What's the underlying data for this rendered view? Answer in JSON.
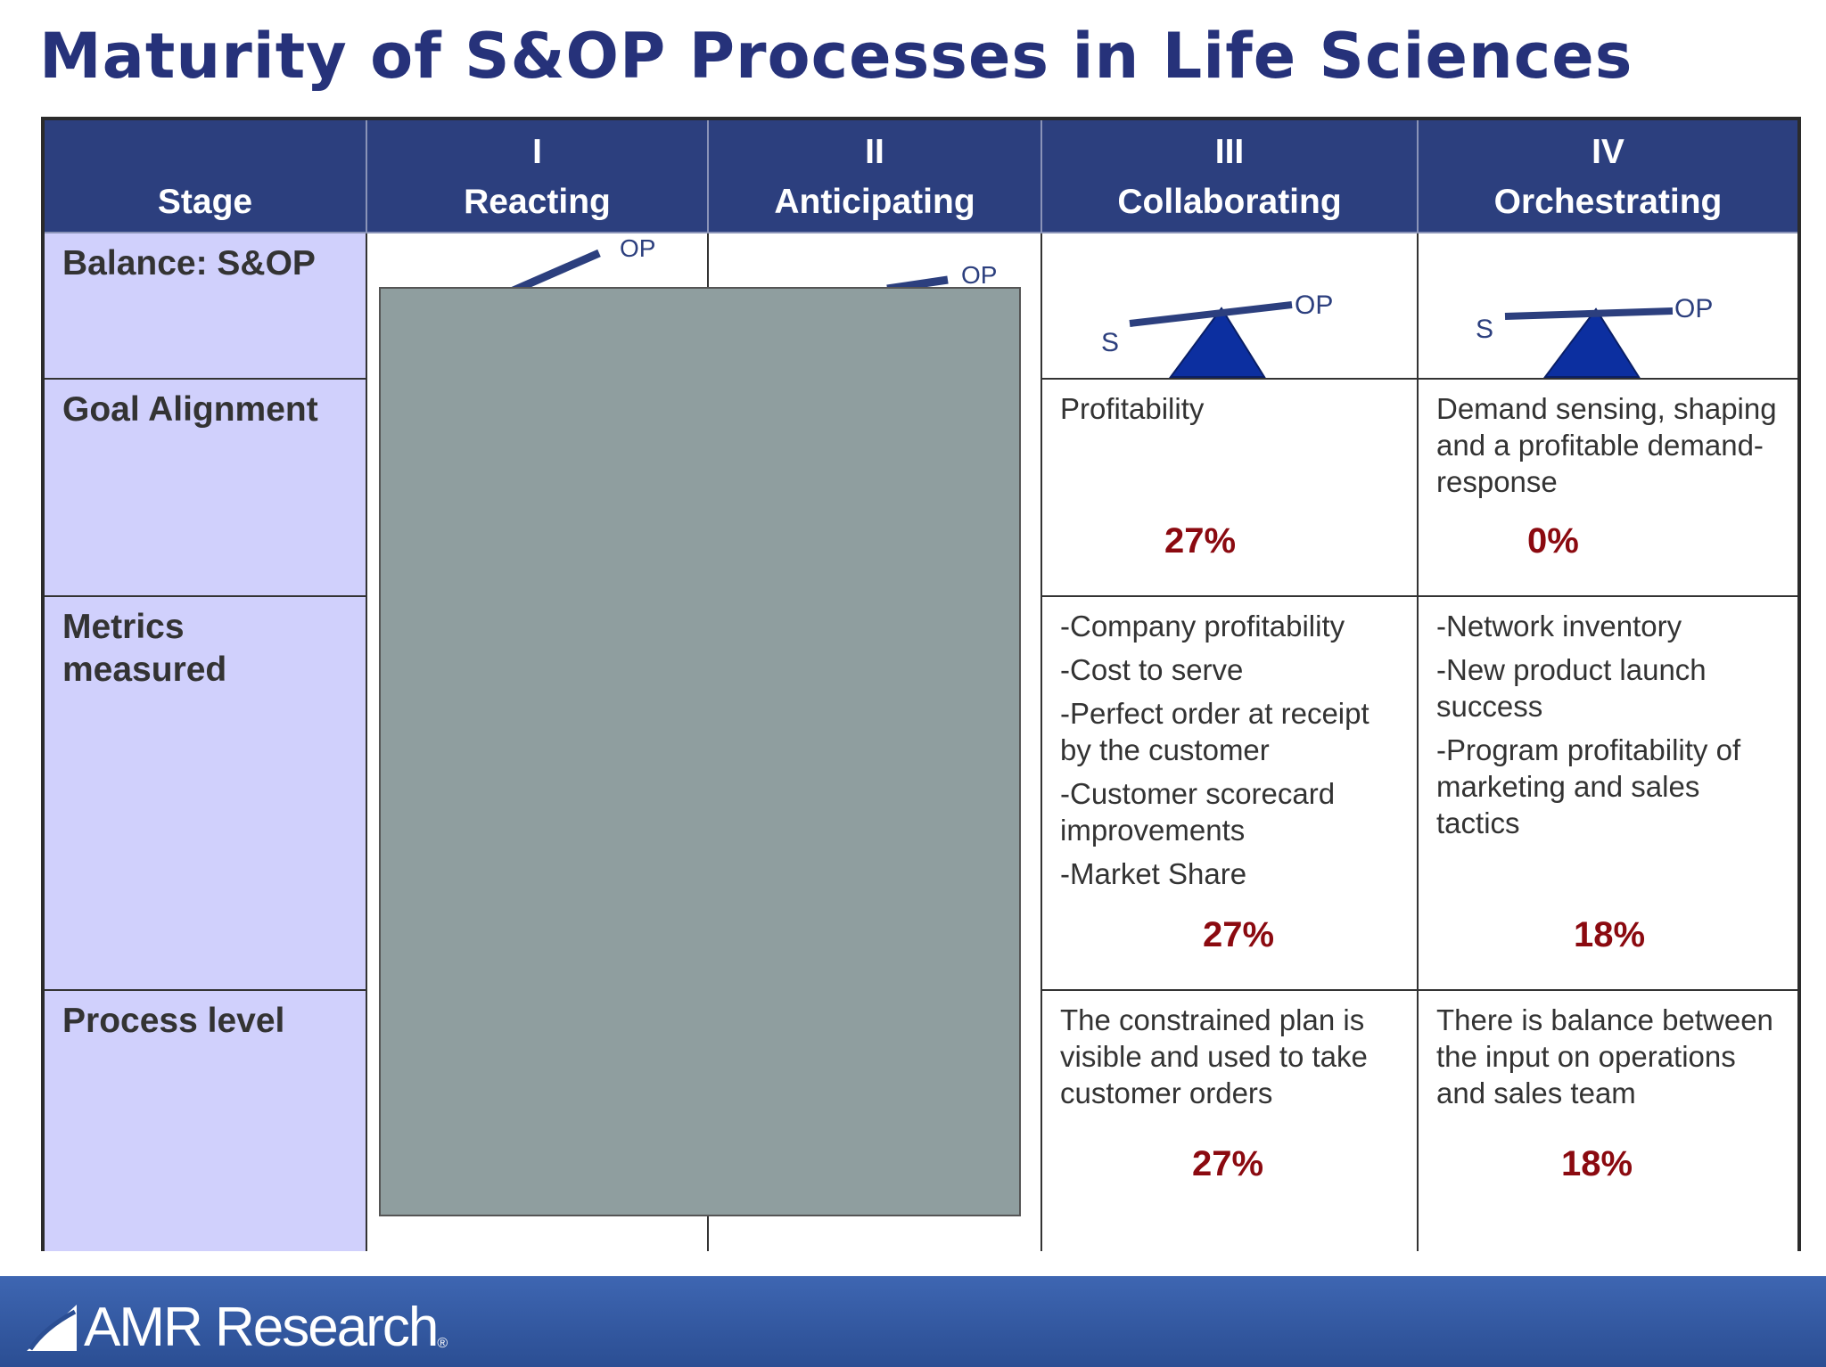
{
  "title": "Maturity of S&OP Processes in Life Sciences",
  "colors": {
    "title": "#26327a",
    "header_bg": "#2c3f7e",
    "label_bg": "#d0d0fc",
    "percent": "#8b0a10",
    "seesaw": "#0c2fa0",
    "overlay": "#8f9e9f"
  },
  "header": {
    "stage_label": "Stage",
    "stages": [
      {
        "numeral": "I",
        "name": "Reacting"
      },
      {
        "numeral": "II",
        "name": "Anticipating"
      },
      {
        "numeral": "III",
        "name": "Collaborating"
      },
      {
        "numeral": "IV",
        "name": "Orchestrating"
      }
    ]
  },
  "rows": {
    "balance": {
      "label": "Balance: S&OP",
      "reacting": {
        "op": "OP"
      },
      "anticipating": {
        "op": "OP"
      },
      "collaborating": {
        "s": "S",
        "op": "OP"
      },
      "orchestrating": {
        "s": "S",
        "op": "OP"
      }
    },
    "goal": {
      "label": "Goal Alignment",
      "collaborating": {
        "text": "Profitability",
        "percent": "27%"
      },
      "orchestrating": {
        "text": "Demand sensing, shaping and a profitable demand-response",
        "percent": "0%"
      }
    },
    "metrics": {
      "label_line1": "Metrics",
      "label_line2": "measured",
      "collaborating": {
        "items": [
          "-Company profitability",
          "-Cost to serve",
          "-Perfect order at receipt by the customer",
          "-Customer scorecard improvements",
          "-Market Share"
        ],
        "percent": "27%"
      },
      "orchestrating": {
        "items": [
          "-Network inventory",
          "-New product launch success",
          "-Program profitability of marketing and sales tactics"
        ],
        "percent": "18%"
      }
    },
    "process": {
      "label": "Process level",
      "collaborating": {
        "text": "The constrained plan is visible and used to take customer orders",
        "percent": "27%"
      },
      "orchestrating": {
        "text": "There is balance between the input on operations and sales team",
        "percent": "18%"
      }
    }
  },
  "footer": {
    "logo_text": "AMR Research",
    "logo_mark": "®"
  }
}
